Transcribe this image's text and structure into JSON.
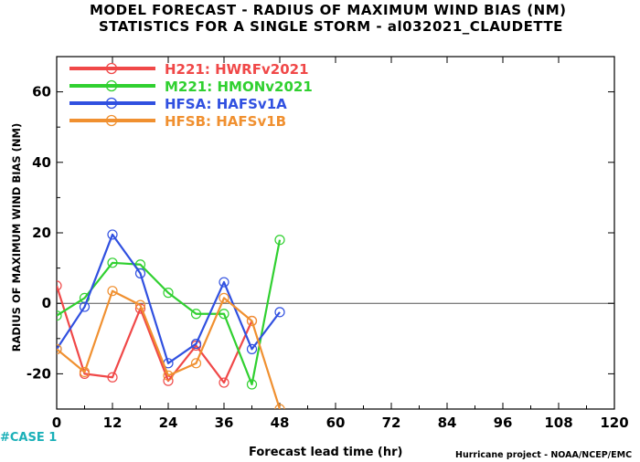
{
  "title_line1": "MODEL FORECAST - RADIUS OF MAXIMUM WIND BIAS (NM)",
  "title_line2": "STATISTICS FOR A SINGLE STORM - al032021_CLAUDETTE",
  "case_label": "#CASE  1",
  "credit": "Hurricane project - NOAA/NCEP/EMC",
  "chart_data": {
    "type": "line",
    "xlabel": "Forecast lead time (hr)",
    "ylabel": "RADIUS OF MAXIMUM WIND BIAS (NM)",
    "xlim": [
      0,
      120
    ],
    "ylim": [
      -30,
      70
    ],
    "xticks": [
      0,
      12,
      24,
      36,
      48,
      60,
      72,
      84,
      96,
      108,
      120
    ],
    "yticks": [
      -20,
      0,
      20,
      40,
      60
    ],
    "x": [
      0,
      6,
      12,
      18,
      24,
      30,
      36,
      42,
      48
    ],
    "legend_position": "top-left",
    "series": [
      {
        "name": "H221: HWRFv2021",
        "color": "#f04848",
        "values": [
          5,
          -20,
          -21,
          -1.5,
          -22,
          -12,
          -22.5,
          -5,
          null
        ]
      },
      {
        "name": "M221: HMONv2021",
        "color": "#30d030",
        "values": [
          -3.5,
          1.5,
          11.5,
          11,
          3,
          -3,
          -3,
          -23,
          18
        ]
      },
      {
        "name": "HFSA: HAFSv1A",
        "color": "#3050e0",
        "values": [
          -13,
          -1,
          19.5,
          8.5,
          -17,
          -11.5,
          6,
          -13,
          -2.5
        ]
      },
      {
        "name": "HFSB: HAFSv1B",
        "color": "#f09030",
        "values": [
          -13,
          -19.5,
          3.5,
          -0.5,
          -20.5,
          -17,
          1.5,
          -5,
          -30
        ]
      }
    ]
  }
}
